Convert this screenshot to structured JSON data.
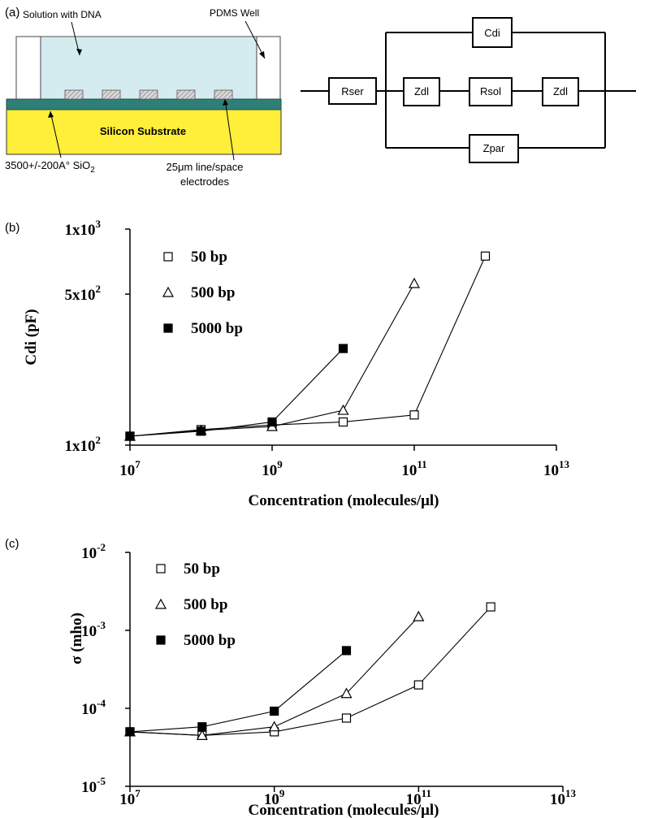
{
  "panel_a": {
    "label": "(a)",
    "schematic": {
      "solution_label": "Solution with DNA",
      "well_label": "PDMS Well",
      "substrate_label": "Silicon Substrate",
      "oxide_label_main": "3500+/-200A° SiO",
      "oxide_label_sub": "2",
      "electrodes_label_line1": "25μm line/space",
      "electrodes_label_line2": "electrodes",
      "colors": {
        "solution": "#d4ecf0",
        "substrate": "#ffee3a",
        "oxide": "#2f7f79",
        "well": "#ffffff"
      }
    },
    "circuit": {
      "labels": {
        "rser": "Rser",
        "cdi": "Cdi",
        "zdl_left": "Zdl",
        "rsol": "Rsol",
        "zdl_right": "Zdl",
        "zpar": "Zpar"
      }
    }
  },
  "chart_data": [
    {
      "panel_label": "(b)",
      "type": "line",
      "xscale": "log",
      "yscale": "log",
      "xlabel": "Concentration (molecules/μl)",
      "ylabel": "Cdi (pF)",
      "xlim": [
        10000000,
        10000000000000
      ],
      "ylim": [
        100,
        1000
      ],
      "xticks": [
        {
          "base": "10",
          "exp": "7"
        },
        {
          "base": "10",
          "exp": "9"
        },
        {
          "base": "10",
          "exp": "11"
        },
        {
          "base": "10",
          "exp": "13"
        }
      ],
      "yticks": [
        {
          "text": "1x10",
          "exp": "2"
        },
        {
          "text": "5x10",
          "exp": "2"
        },
        {
          "text": "1x10",
          "exp": "3"
        }
      ],
      "series": [
        {
          "name": "50 bp",
          "marker": "square-open",
          "x": [
            10000000,
            100000000,
            1000000000,
            10000000000,
            100000000000,
            1000000000000
          ],
          "y": [
            110,
            118,
            124,
            128,
            138,
            750
          ]
        },
        {
          "name": "500 bp",
          "marker": "triangle-open",
          "x": [
            10000000,
            100000000,
            1000000000,
            10000000000,
            100000000000
          ],
          "y": [
            110,
            117,
            122,
            145,
            560
          ]
        },
        {
          "name": "5000 bp",
          "marker": "square-filled",
          "x": [
            10000000,
            100000000,
            1000000000,
            10000000000
          ],
          "y": [
            110,
            116,
            128,
            280
          ]
        }
      ]
    },
    {
      "panel_label": "(c)",
      "type": "line",
      "xscale": "log",
      "yscale": "log",
      "xlabel": "Concentration (molecules/μl)",
      "ylabel": "σ (mho)",
      "xlim": [
        10000000,
        10000000000000
      ],
      "ylim": [
        1e-05,
        0.01
      ],
      "xticks": [
        {
          "base": "10",
          "exp": "7"
        },
        {
          "base": "10",
          "exp": "9"
        },
        {
          "base": "10",
          "exp": "11"
        },
        {
          "base": "10",
          "exp": "13"
        }
      ],
      "yticks": [
        {
          "text": "10",
          "exp": "-5"
        },
        {
          "text": "10",
          "exp": "-4"
        },
        {
          "text": "10",
          "exp": "-3"
        },
        {
          "text": "10",
          "exp": "-2"
        }
      ],
      "series": [
        {
          "name": "50 bp",
          "marker": "square-open",
          "x": [
            10000000,
            100000000,
            1000000000,
            10000000000,
            100000000000,
            1000000000000
          ],
          "y": [
            5e-05,
            4.5e-05,
            5e-05,
            7.5e-05,
            0.0002,
            0.002
          ]
        },
        {
          "name": "500 bp",
          "marker": "triangle-open",
          "x": [
            10000000,
            100000000,
            1000000000,
            10000000000,
            100000000000
          ],
          "y": [
            5e-05,
            4.5e-05,
            5.8e-05,
            0.000155,
            0.0015
          ]
        },
        {
          "name": "5000 bp",
          "marker": "square-filled",
          "x": [
            10000000,
            100000000,
            1000000000,
            10000000000
          ],
          "y": [
            5e-05,
            5.8e-05,
            9.2e-05,
            0.00055
          ]
        }
      ]
    }
  ]
}
